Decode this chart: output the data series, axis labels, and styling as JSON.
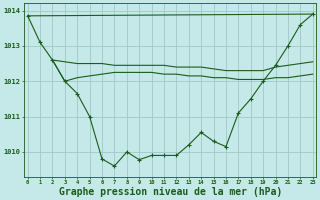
{
  "background_color": "#c5e8e8",
  "grid_color": "#a0c8c8",
  "line_color": "#1a5c1a",
  "marker_color": "#1a5c1a",
  "xlabel": "Graphe pression niveau de la mer (hPa)",
  "xlabel_fontsize": 7.0,
  "xtick_labels": [
    "0",
    "1",
    "2",
    "3",
    "4",
    "5",
    "6",
    "7",
    "8",
    "9",
    "10",
    "11",
    "12",
    "13",
    "14",
    "15",
    "16",
    "17",
    "18",
    "19",
    "20",
    "21",
    "22",
    "23"
  ],
  "ytick_labels": [
    "1010",
    "1011",
    "1012",
    "1013",
    "1014"
  ],
  "ylim": [
    1009.3,
    1014.2
  ],
  "xlim": [
    -0.3,
    23.3
  ],
  "series1_x": [
    0,
    1,
    2,
    3,
    4,
    5,
    6,
    7,
    8,
    9,
    10,
    11,
    12,
    13,
    14,
    15,
    16,
    17,
    18,
    19,
    20,
    21,
    22,
    23
  ],
  "series1_y": [
    1013.85,
    1013.1,
    1012.6,
    1012.0,
    1011.65,
    1011.0,
    1009.8,
    1009.6,
    1010.0,
    1009.78,
    1009.9,
    1009.9,
    1009.9,
    1010.2,
    1010.55,
    1010.3,
    1010.15,
    1011.1,
    1011.5,
    1012.0,
    1012.45,
    1013.0,
    1013.6,
    1013.9
  ],
  "series2_x": [
    0,
    23
  ],
  "series2_y": [
    1013.85,
    1013.9
  ],
  "series3_x": [
    2,
    3,
    4,
    5,
    6,
    7,
    8,
    9,
    10,
    11,
    12,
    13,
    14,
    15,
    16,
    17,
    18,
    19,
    20,
    21,
    22,
    23
  ],
  "series3_y": [
    1012.6,
    1012.55,
    1012.5,
    1012.5,
    1012.5,
    1012.45,
    1012.45,
    1012.45,
    1012.45,
    1012.45,
    1012.4,
    1012.4,
    1012.4,
    1012.35,
    1012.3,
    1012.3,
    1012.3,
    1012.3,
    1012.4,
    1012.45,
    1012.5,
    1012.55
  ],
  "series4_x": [
    2,
    3,
    4,
    5,
    6,
    7,
    8,
    9,
    10,
    11,
    12,
    13,
    14,
    15,
    16,
    17,
    18,
    19,
    20,
    21,
    22,
    23
  ],
  "series4_y": [
    1012.6,
    1012.0,
    1012.1,
    1012.15,
    1012.2,
    1012.25,
    1012.25,
    1012.25,
    1012.25,
    1012.2,
    1012.2,
    1012.15,
    1012.15,
    1012.1,
    1012.1,
    1012.05,
    1012.05,
    1012.05,
    1012.1,
    1012.1,
    1012.15,
    1012.2
  ]
}
